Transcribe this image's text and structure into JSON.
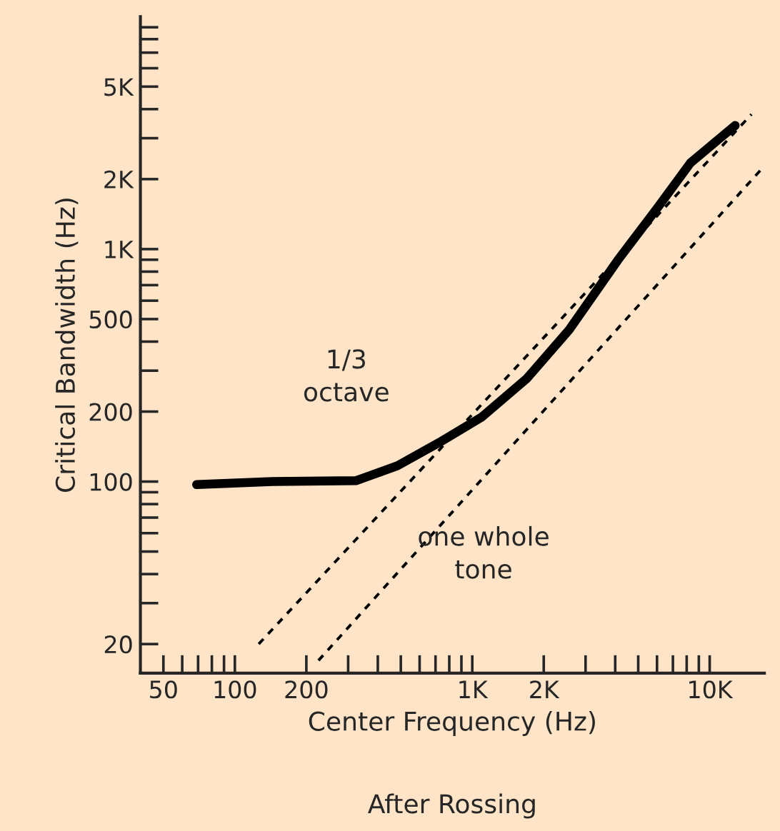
{
  "chart_data": {
    "type": "line",
    "xlabel": "Center Frequency (Hz)",
    "ylabel": "Critical Bandwidth (Hz)",
    "log": "xy",
    "grid": false,
    "legend": false,
    "xlim": [
      40,
      17000
    ],
    "ylim": [
      15,
      10000
    ],
    "xticks": [
      50,
      {
        "value": 60,
        "label": null
      },
      {
        "value": 70,
        "label": null
      },
      {
        "value": 80,
        "label": null
      },
      {
        "value": 90,
        "label": null
      },
      100,
      200,
      {
        "value": 300,
        "label": null
      },
      {
        "value": 400,
        "label": null
      },
      {
        "value": 500,
        "label": null
      },
      {
        "value": 600,
        "label": null
      },
      {
        "value": 700,
        "label": null
      },
      {
        "value": 800,
        "label": null
      },
      {
        "value": 900,
        "label": null
      },
      {
        "value": 1000,
        "label": "1K"
      },
      {
        "value": 2000,
        "label": "2K"
      },
      {
        "value": 3000,
        "label": null
      },
      {
        "value": 4000,
        "label": null
      },
      {
        "value": 5000,
        "label": null
      },
      {
        "value": 6000,
        "label": null
      },
      {
        "value": 7000,
        "label": null
      },
      {
        "value": 8000,
        "label": null
      },
      {
        "value": 9000,
        "label": null
      },
      {
        "value": 10000,
        "label": "10K"
      }
    ],
    "yticks": [
      20,
      {
        "value": 30,
        "label": null
      },
      {
        "value": 40,
        "label": null
      },
      {
        "value": 50,
        "label": null
      },
      {
        "value": 60,
        "label": null
      },
      {
        "value": 70,
        "label": null
      },
      {
        "value": 80,
        "label": null
      },
      {
        "value": 90,
        "label": null
      },
      100,
      200,
      {
        "value": 300,
        "label": null
      },
      {
        "value": 400,
        "label": null
      },
      500,
      {
        "value": 600,
        "label": null
      },
      {
        "value": 700,
        "label": null
      },
      {
        "value": 800,
        "label": null
      },
      {
        "value": 900,
        "label": null
      },
      {
        "value": 1000,
        "label": "1K"
      },
      {
        "value": 2000,
        "label": "2K"
      },
      {
        "value": 3000,
        "label": null
      },
      {
        "value": 4000,
        "label": null
      },
      {
        "value": 5000,
        "label": "5K"
      },
      {
        "value": 6000,
        "label": null
      },
      {
        "value": 7000,
        "label": null
      },
      {
        "value": 8000,
        "label": null
      },
      {
        "value": 9000,
        "label": null
      }
    ],
    "series": [
      {
        "color": "#000000",
        "line_style": "solid",
        "x": [
          69,
          144,
          325,
          484,
          724,
          1100,
          1700,
          2560,
          4100,
          6100,
          8300,
          12800
        ],
        "values": [
          97,
          100,
          101,
          117,
          147,
          190,
          278,
          450,
          895,
          1530,
          2350,
          3400
        ]
      },
      {
        "color": "#000000",
        "line_style": "dashed",
        "x": [
          126,
          15000
        ],
        "values": [
          20,
          3800
        ]
      },
      {
        "color": "#000000",
        "line_style": "dashed",
        "x": [
          225,
          16800
        ],
        "values": [
          17,
          2250
        ]
      }
    ],
    "annotations": [
      "1/3\noctave",
      "one whole\ntone",
      "After Rossing"
    ]
  }
}
